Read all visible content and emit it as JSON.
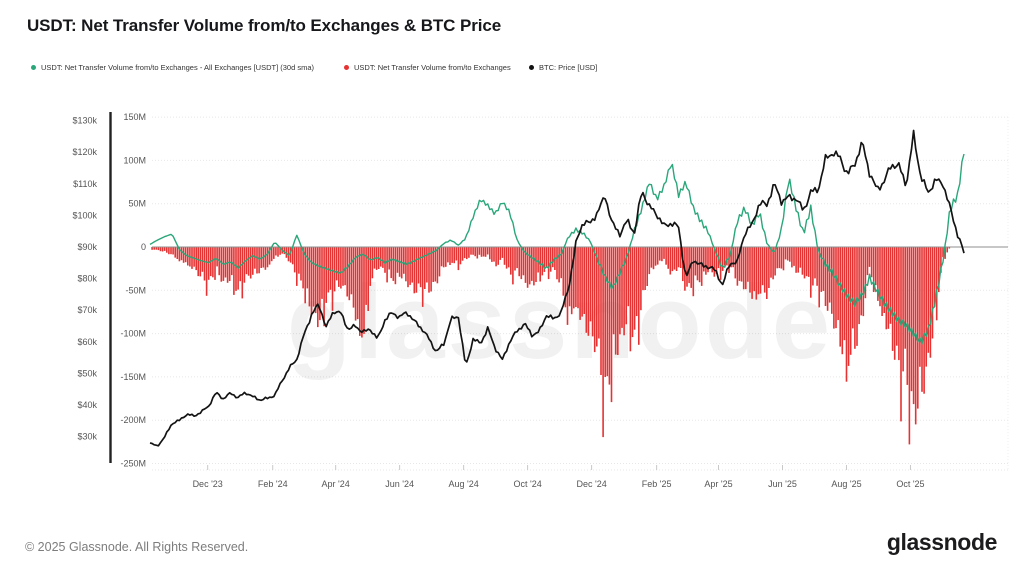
{
  "header": {
    "title": "USDT: Net Transfer Volume from/to Exchanges & BTC Price"
  },
  "legend": {
    "items": [
      {
        "label": "USDT: Net Transfer Volume from/to Exchanges - All Exchanges [USDT] (30d sma)",
        "color": "#2aa77a"
      },
      {
        "label": "USDT: Net Transfer Volume from/to Exchanges",
        "color": "#e53232"
      },
      {
        "label": "BTC: Price [USD]",
        "color": "#111111"
      }
    ]
  },
  "watermark": "glassnode",
  "footer": {
    "copyright": "© 2025 Glassnode. All Rights Reserved.",
    "brand": "glassnode"
  },
  "chart_data": {
    "type": "mixed",
    "title": "USDT: Net Transfer Volume from/to Exchanges & BTC Price",
    "grid": true,
    "legend_position": "top",
    "x_start_date": "2023-10-07",
    "x_end_date": "2025-11-22",
    "x_axis": {
      "tick_days": [
        55,
        117,
        177,
        238,
        299,
        360,
        421,
        483,
        542,
        603,
        664,
        725
      ],
      "tick_labels": [
        "Dec '23",
        "Feb '24",
        "Apr '24",
        "Jun '24",
        "Aug '24",
        "Oct '24",
        "Dec '24",
        "Feb '25",
        "Apr '25",
        "Jun '25",
        "Aug '25",
        "Oct '25"
      ]
    },
    "left_axis_price": {
      "unit": "USD (thousands)",
      "tick_labels": [
        "$130k",
        "$120k",
        "$110k",
        "$100k",
        "$90k",
        "$80k",
        "$70k",
        "$60k",
        "$50k",
        "$40k",
        "$30k"
      ],
      "tick_values": [
        130,
        120,
        110,
        100,
        90,
        80,
        70,
        60,
        50,
        40,
        30
      ]
    },
    "left_axis_volume": {
      "unit": "USDT (millions)",
      "tick_labels": [
        "150M",
        "100M",
        "50M",
        "0",
        "-50M",
        "-100M",
        "-150M",
        "-200M",
        "-250M"
      ],
      "tick_values": [
        150,
        100,
        50,
        0,
        -50,
        -100,
        -150,
        -200,
        -250
      ],
      "range": [
        -250,
        150
      ]
    },
    "sample_days": [
      0,
      7,
      14,
      21,
      28,
      35,
      42,
      49,
      56,
      63,
      70,
      77,
      84,
      91,
      98,
      105,
      112,
      119,
      126,
      133,
      140,
      147,
      154,
      161,
      168,
      175,
      182,
      189,
      196,
      203,
      210,
      217,
      224,
      231,
      238,
      245,
      252,
      259,
      266,
      273,
      280,
      287,
      294,
      301,
      308,
      315,
      322,
      329,
      336,
      343,
      350,
      357,
      364,
      371,
      378,
      385,
      392,
      399,
      406,
      413,
      420,
      427,
      434,
      441,
      448,
      455,
      462,
      469,
      476,
      483,
      490,
      497,
      504,
      511,
      518,
      525,
      532,
      539,
      546,
      553,
      560,
      567,
      574,
      581,
      588,
      595,
      602,
      609,
      616,
      623,
      630,
      637,
      644,
      651,
      658,
      665,
      672,
      679,
      686,
      693,
      700,
      707,
      714,
      721,
      728,
      735,
      742,
      749,
      756,
      763,
      770,
      777
    ],
    "series": [
      {
        "name": "USDT: Net Transfer Volume from/to Exchanges - All Exchanges [USDT] (30d sma)",
        "type": "line",
        "axis": "volume",
        "unit": "M USD",
        "color": "#2aa77a",
        "values": [
          3,
          8,
          12,
          15,
          -3,
          -10,
          -13,
          -16,
          -18,
          -13,
          -20,
          -17,
          -24,
          -16,
          -10,
          -14,
          -8,
          6,
          -4,
          -10,
          14,
          -8,
          -18,
          -22,
          -25,
          -28,
          -30,
          -22,
          -12,
          -8,
          -15,
          -12,
          -18,
          -14,
          -17,
          -20,
          -16,
          -12,
          -8,
          -4,
          4,
          8,
          2,
          10,
          35,
          55,
          48,
          38,
          52,
          40,
          8,
          -6,
          -12,
          -18,
          -25,
          -15,
          -8,
          12,
          20,
          16,
          6,
          -15,
          -35,
          -48,
          -30,
          -10,
          20,
          45,
          75,
          55,
          70,
          98,
          60,
          75,
          45,
          30,
          18,
          -5,
          -25,
          -10,
          30,
          45,
          25,
          40,
          5,
          -8,
          20,
          80,
          45,
          15,
          45,
          -5,
          -20,
          -30,
          -45,
          -57,
          -65,
          -55,
          -35,
          -50,
          -65,
          -75,
          -85,
          -90,
          -100,
          -110,
          -95,
          -60,
          -15,
          45,
          60,
          120
        ]
      },
      {
        "name": "USDT: Net Transfer Volume from/to Exchanges",
        "type": "bar",
        "axis": "volume",
        "unit": "M USD",
        "color": "#e53232",
        "values": [
          -2,
          -4,
          -6,
          -10,
          -16,
          -20,
          -28,
          -38,
          -45,
          -28,
          -45,
          -40,
          -55,
          -40,
          -35,
          -30,
          -25,
          -12,
          -8,
          -18,
          -35,
          -50,
          -80,
          -95,
          -65,
          -55,
          -48,
          -60,
          -85,
          -112,
          -45,
          -25,
          -30,
          -40,
          -35,
          -45,
          -55,
          -52,
          -55,
          -45,
          -25,
          -18,
          -22,
          -15,
          -10,
          -12,
          -10,
          -25,
          -15,
          -35,
          -30,
          -45,
          -50,
          -35,
          -30,
          -28,
          -50,
          -85,
          -70,
          -95,
          -110,
          -130,
          -185,
          -140,
          -120,
          -90,
          -110,
          -70,
          -35,
          -20,
          -15,
          -35,
          -25,
          -55,
          -45,
          -40,
          -30,
          -35,
          -28,
          -22,
          -45,
          -50,
          -60,
          -55,
          -60,
          -35,
          -25,
          -15,
          -30,
          -35,
          -45,
          -50,
          -70,
          -90,
          -120,
          -140,
          -125,
          -90,
          -25,
          -60,
          -85,
          -120,
          -150,
          -160,
          -215,
          -185,
          -150,
          -80,
          -15,
          0,
          0,
          0
        ]
      },
      {
        "name": "BTC: Price [USD]",
        "type": "line",
        "axis": "price",
        "unit": "USD (thousands)",
        "color": "#141414",
        "values": [
          28,
          26.9,
          29.9,
          34.2,
          35.1,
          37.1,
          36.5,
          37.8,
          39.7,
          43.9,
          42,
          43.8,
          42.3,
          44,
          42.6,
          41.6,
          42.1,
          43.1,
          47.8,
          51.8,
          54.5,
          62.4,
          68.5,
          72,
          64.5,
          69.8,
          69,
          63.9,
          65,
          63,
          64,
          60.8,
          67,
          69.2,
          67.8,
          69.4,
          66.5,
          64.3,
          60.9,
          56.8,
          59.3,
          67.2,
          68,
          52,
          60.9,
          59.4,
          64.2,
          58.1,
          54.2,
          60.1,
          63.4,
          65.8,
          62.2,
          63.1,
          68.5,
          67.1,
          69.5,
          76.8,
          91,
          98.1,
          97.4,
          101.3,
          106,
          97.1,
          94.2,
          98.3,
          94.6,
          108,
          102.7,
          100.5,
          96.6,
          97.6,
          96.2,
          80,
          86,
          84.2,
          83.9,
          82.5,
          78,
          85,
          85.2,
          94.6,
          97,
          104,
          103.3,
          110,
          104.5,
          105.7,
          105.4,
          101.4,
          107.4,
          108.1,
          117.8,
          120,
          118.1,
          112.9,
          116.5,
          123,
          113.5,
          108.1,
          110.8,
          116.1,
          115.6,
          109.6,
          125.5,
          112,
          107.3,
          111.2,
          110.1,
          102,
          94,
          87
        ]
      }
    ]
  }
}
